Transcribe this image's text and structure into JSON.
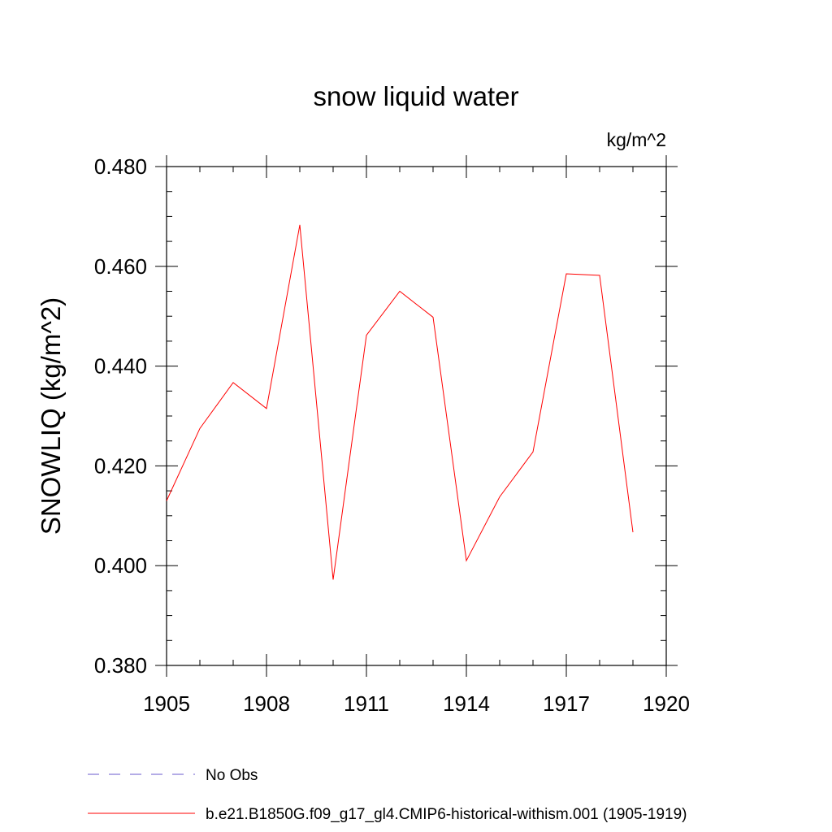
{
  "chart_data": {
    "type": "line",
    "title": "snow liquid water",
    "units_label": "kg/m^2",
    "ylabel": "SNOWLIQ  (kg/m^2)",
    "xlabel": "",
    "xlim": [
      1905,
      1920
    ],
    "ylim": [
      0.38,
      0.48
    ],
    "x_ticks": [
      "1905",
      "1908",
      "1911",
      "1914",
      "1917",
      "1920"
    ],
    "y_ticks": [
      "0.380",
      "0.400",
      "0.420",
      "0.440",
      "0.460",
      "0.480"
    ],
    "grid": false,
    "legend_position": "bottom-left",
    "series": [
      {
        "name": "No Obs",
        "color": "#6a5acd",
        "style": "dashed",
        "x": [],
        "y": []
      },
      {
        "name": "b.e21.B1850G.f09_g17_gl4.CMIP6-historical-withism.001 (1905-1919)",
        "color": "#ff0000",
        "style": "solid",
        "x": [
          1905,
          1906,
          1907,
          1908,
          1909,
          1910,
          1911,
          1912,
          1913,
          1914,
          1915,
          1916,
          1917,
          1918,
          1919
        ],
        "y": [
          0.413,
          0.4275,
          0.4367,
          0.4315,
          0.4683,
          0.3972,
          0.4462,
          0.455,
          0.4498,
          0.401,
          0.4138,
          0.4228,
          0.4585,
          0.4582,
          0.4067
        ]
      }
    ]
  }
}
